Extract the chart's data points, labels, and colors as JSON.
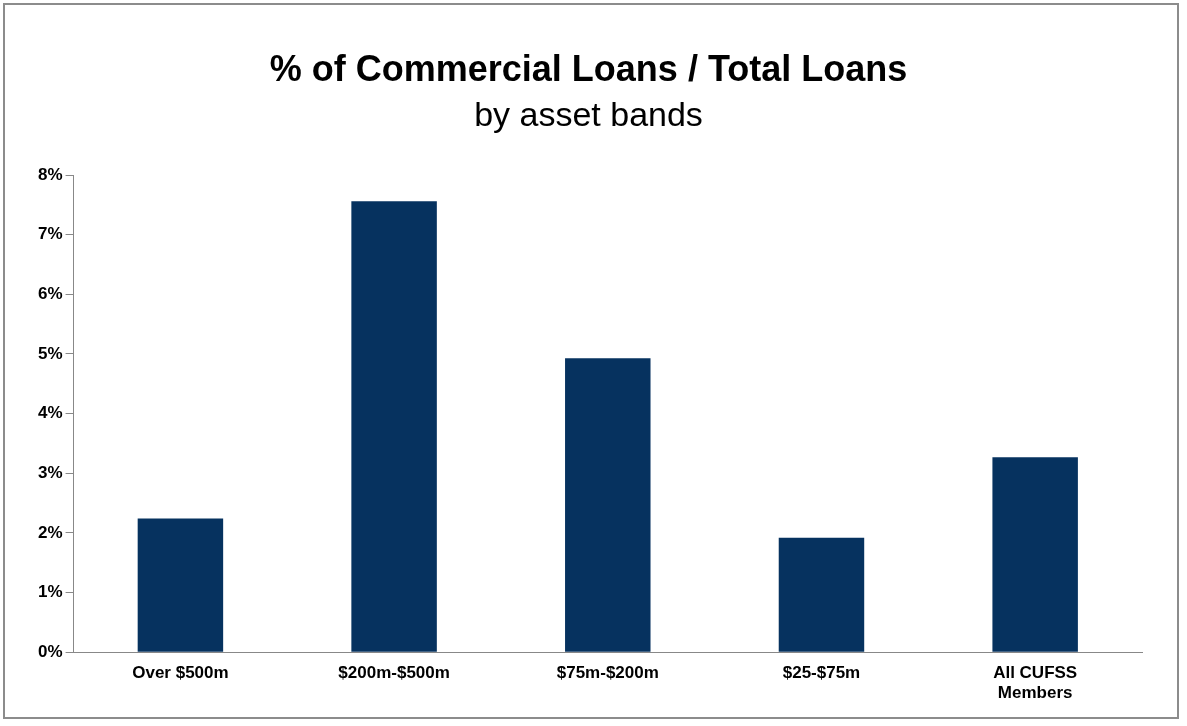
{
  "chart_data": {
    "type": "bar",
    "title": "% of Commercial Loans / Total Loans",
    "subtitle": "by asset bands",
    "categories": [
      "Over $500m",
      "$200m-$500m",
      "$75m-$200m",
      "$25-$75m",
      "All CUFSS Members"
    ],
    "values": [
      2.24,
      7.56,
      4.93,
      1.92,
      3.27
    ],
    "color": "#06325f",
    "ylim": [
      0,
      8
    ],
    "yticks": [
      {
        "value": 0,
        "label": "0%"
      },
      {
        "value": 1,
        "label": "1%"
      },
      {
        "value": 2,
        "label": "2%"
      },
      {
        "value": 3,
        "label": "3%"
      },
      {
        "value": 4,
        "label": "4%"
      },
      {
        "value": 5,
        "label": "5%"
      },
      {
        "value": 6,
        "label": "6%"
      },
      {
        "value": 7,
        "label": "7%"
      },
      {
        "value": 8,
        "label": "8%"
      }
    ],
    "grid": false,
    "legend": false
  }
}
